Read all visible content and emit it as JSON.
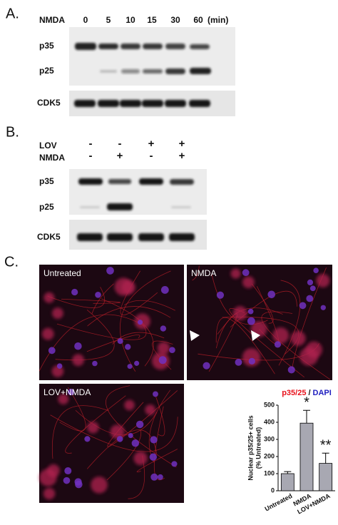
{
  "panel_a": {
    "label": "A.",
    "treatment": "NMDA",
    "times": [
      "0",
      "5",
      "10",
      "15",
      "30",
      "60"
    ],
    "time_unit": "(min)",
    "bands": [
      "p35",
      "p25"
    ],
    "loading": "CDK5"
  },
  "panel_b": {
    "label": "B.",
    "rows": [
      {
        "name": "LOV",
        "signs": [
          "-",
          "-",
          "+",
          "+"
        ]
      },
      {
        "name": "NMDA",
        "signs": [
          "-",
          "+",
          "-",
          "+"
        ]
      }
    ],
    "bands": [
      "p35",
      "p25"
    ],
    "loading": "CDK5"
  },
  "panel_c": {
    "label": "C.",
    "images": [
      "Untreated",
      "NMDA",
      "LOV+NMDA"
    ]
  },
  "chart_data": {
    "type": "bar",
    "stains": [
      {
        "text": "p35/25",
        "color": "#e8101a"
      },
      {
        "text": "DAPI",
        "color": "#2020c0"
      }
    ],
    "separator": "/",
    "y_label": [
      "Nuclear p35/25+ cells",
      "(% Untreated)"
    ],
    "categories": [
      "Untreated",
      "NMDA",
      "LOV+NMDA"
    ],
    "values": [
      100,
      395,
      160
    ],
    "errors": [
      12,
      75,
      60
    ],
    "annotations": [
      {
        "text": "*",
        "category": "NMDA"
      },
      {
        "text": "**",
        "category": "LOV+NMDA"
      }
    ],
    "color": "#a8a8b2",
    "ylim": [
      0,
      500
    ],
    "yticks": [
      0,
      100,
      200,
      300,
      400,
      500
    ]
  }
}
